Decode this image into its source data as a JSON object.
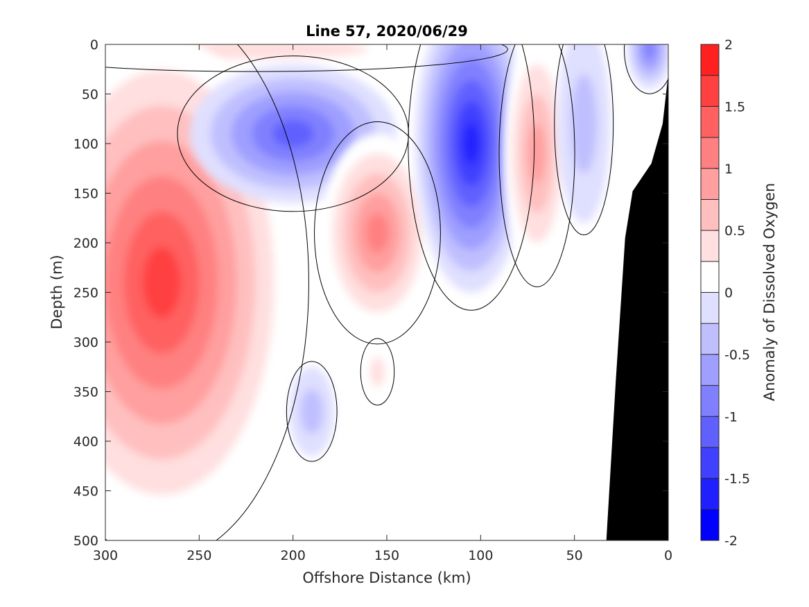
{
  "chart_data": {
    "type": "contour",
    "title": "Line 57, 2020/06/29",
    "xlabel": "Offshore Distance (km)",
    "ylabel": "Depth (m)",
    "colorbar_label": "Anomaly of Dissolved Oxygen",
    "x_reversed": true,
    "y_reversed": true,
    "xlim": [
      300,
      0
    ],
    "ylim": [
      0,
      500
    ],
    "x_ticks": [
      300,
      250,
      200,
      150,
      100,
      50,
      0
    ],
    "y_ticks": [
      0,
      50,
      100,
      150,
      200,
      250,
      300,
      350,
      400,
      450,
      500
    ],
    "colorbar": {
      "range": [
        -2,
        2
      ],
      "tick_values": [
        2,
        1.5,
        1,
        0.5,
        0,
        -0.5,
        -1,
        -1.5,
        -2
      ],
      "tick_labels": [
        "2",
        "1.5",
        "1",
        "0.5",
        "0",
        "-0.5",
        "-1",
        "-1.5",
        "-2"
      ],
      "levels": [
        -2,
        -1.75,
        -1.5,
        -1.25,
        -1,
        -0.75,
        -0.5,
        -0.25,
        0,
        0.25,
        0.5,
        0.75,
        1,
        1.25,
        1.5,
        1.75,
        2
      ],
      "colors": [
        "#0000ff",
        "#2020ff",
        "#4040ff",
        "#6060ff",
        "#8080ff",
        "#9f9fff",
        "#bfbfff",
        "#dfdfff",
        "#ffffff",
        "#ffdfdf",
        "#ffbfbf",
        "#ff9f9f",
        "#ff8080",
        "#ff6060",
        "#ff4040",
        "#ff2020"
      ]
    },
    "features": [
      {
        "name": "surface-positive-anomaly",
        "sign": "positive",
        "peak": 0.5,
        "center_km": 220,
        "center_depth_m": 5
      },
      {
        "name": "offshore-positive-core",
        "sign": "positive",
        "peak": 1.8,
        "center_km": 270,
        "center_depth_m": 240
      },
      {
        "name": "mid-negative-core",
        "sign": "negative",
        "peak": -1.2,
        "center_km": 200,
        "center_depth_m": 90
      },
      {
        "name": "mid-positive-core",
        "sign": "positive",
        "peak": 1.3,
        "center_km": 155,
        "center_depth_m": 190
      },
      {
        "name": "nearshore-negative-core",
        "sign": "negative",
        "peak": -1.8,
        "center_km": 105,
        "center_depth_m": 100
      },
      {
        "name": "nearshore-positive-core",
        "sign": "positive",
        "peak": 1.0,
        "center_km": 70,
        "center_depth_m": 110
      },
      {
        "name": "coastal-negative-core",
        "sign": "negative",
        "peak": -0.5,
        "center_km": 45,
        "center_depth_m": 80
      },
      {
        "name": "deep-negative-patch",
        "sign": "negative",
        "peak": -0.5,
        "center_km": 190,
        "center_depth_m": 370
      },
      {
        "name": "deep-positive-patch",
        "sign": "positive",
        "peak": 0.4,
        "center_km": 155,
        "center_depth_m": 330
      },
      {
        "name": "surface-coastal-negative",
        "sign": "negative",
        "peak": -1.0,
        "center_km": 10,
        "center_depth_m": 5
      }
    ],
    "bathymetry_profile": [
      {
        "x_km": 33,
        "depth_m": 500
      },
      {
        "x_km": 28,
        "depth_m": 340
      },
      {
        "x_km": 23,
        "depth_m": 195
      },
      {
        "x_km": 19,
        "depth_m": 148
      },
      {
        "x_km": 9,
        "depth_m": 120
      },
      {
        "x_km": 3,
        "depth_m": 80
      },
      {
        "x_km": 0,
        "depth_m": 30
      }
    ]
  }
}
